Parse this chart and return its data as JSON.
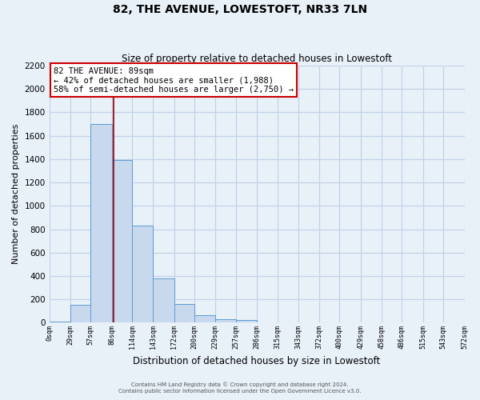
{
  "title": "82, THE AVENUE, LOWESTOFT, NR33 7LN",
  "subtitle": "Size of property relative to detached houses in Lowestoft",
  "xlabel": "Distribution of detached houses by size in Lowestoft",
  "ylabel": "Number of detached properties",
  "bin_edges": [
    0,
    29,
    57,
    86,
    114,
    143,
    172,
    200,
    229,
    257,
    286,
    315,
    343,
    372,
    400,
    429,
    458,
    486,
    515,
    543,
    572
  ],
  "bin_labels": [
    "0sqm",
    "29sqm",
    "57sqm",
    "86sqm",
    "114sqm",
    "143sqm",
    "172sqm",
    "200sqm",
    "229sqm",
    "257sqm",
    "286sqm",
    "315sqm",
    "343sqm",
    "372sqm",
    "400sqm",
    "429sqm",
    "458sqm",
    "486sqm",
    "515sqm",
    "543sqm",
    "572sqm"
  ],
  "counts": [
    10,
    155,
    1700,
    1390,
    830,
    380,
    160,
    65,
    30,
    25,
    0,
    0,
    0,
    0,
    0,
    0,
    0,
    0,
    0,
    0
  ],
  "bar_color": "#c8d9ed",
  "bar_edge_color": "#5b9bd5",
  "grid_color": "#c0d0e8",
  "bg_color": "#e8f0f8",
  "property_size": 89,
  "property_label": "82 THE AVENUE: 89sqm",
  "annotation_line1": "← 42% of detached houses are smaller (1,988)",
  "annotation_line2": "58% of semi-detached houses are larger (2,750) →",
  "vline_color": "#990000",
  "box_edge_color": "#cc0000",
  "ylim": [
    0,
    2200
  ],
  "yticks": [
    0,
    200,
    400,
    600,
    800,
    1000,
    1200,
    1400,
    1600,
    1800,
    2000,
    2200
  ],
  "footer1": "Contains HM Land Registry data © Crown copyright and database right 2024.",
  "footer2": "Contains public sector information licensed under the Open Government Licence v3.0."
}
